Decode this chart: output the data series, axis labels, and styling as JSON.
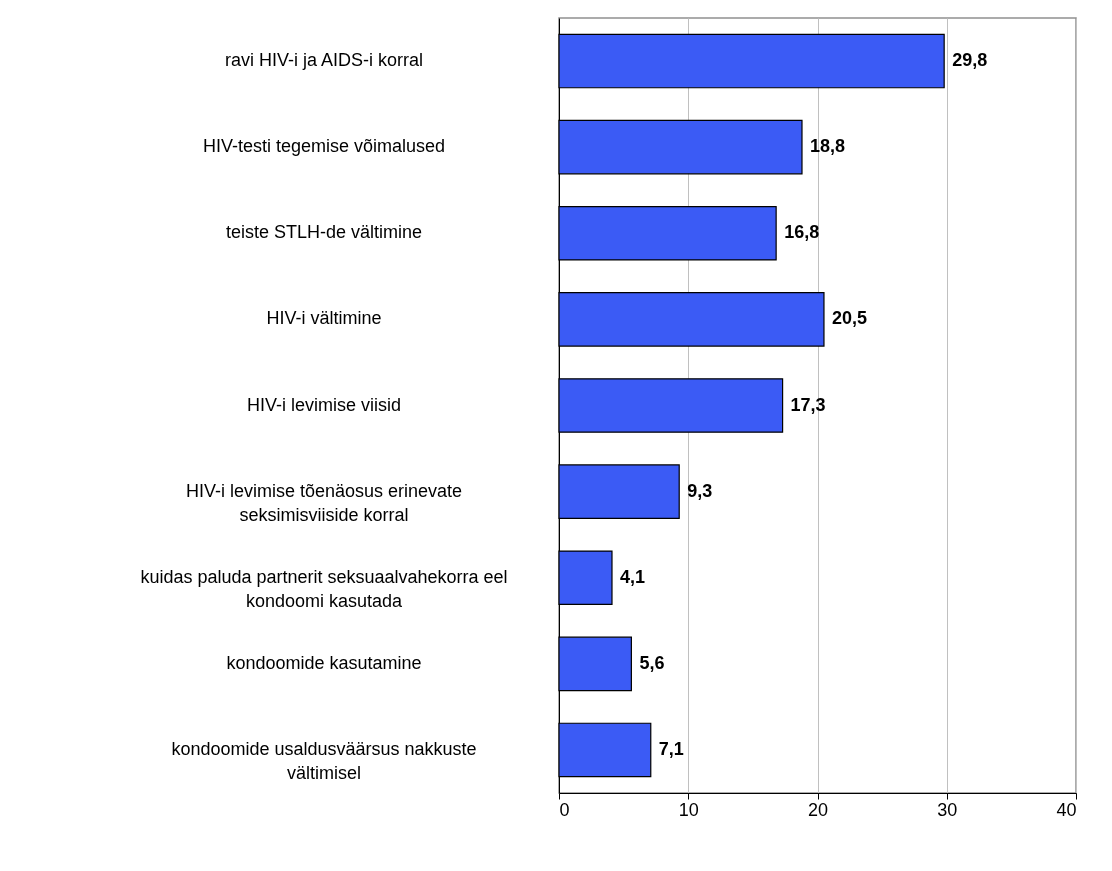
{
  "chart_data": {
    "type": "bar",
    "orientation": "horizontal",
    "categories": [
      "ravi HIV-i ja AIDS-i korral",
      "HIV-testi tegemise võimalused",
      "teiste STLH-de vältimine",
      "HIV-i vältimine",
      "HIV-i levimise viisid",
      "HIV-i levimise tõenäosus erinevate seksimisviiside korral",
      "kuidas paluda partnerit seksuaalvahekorra eel kondoomi kasutada",
      "kondoomide kasutamine",
      "kondoomide usaldusväärsus nakkuste vältimisel"
    ],
    "values": [
      29.8,
      18.8,
      16.8,
      20.5,
      17.3,
      9.3,
      4.1,
      5.6,
      7.1
    ],
    "value_labels": [
      "29,8",
      "18,8",
      "16,8",
      "20,5",
      "17,3",
      "9,3",
      "4,1",
      "5,6",
      "7,1"
    ],
    "color": "#3b5bf5",
    "xlim": [
      0,
      40
    ],
    "xticks": [
      0,
      10,
      20,
      30,
      40
    ],
    "grid": "x"
  }
}
